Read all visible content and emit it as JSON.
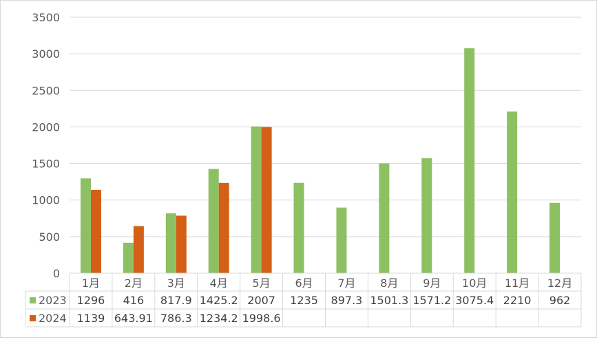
{
  "chart_data": {
    "type": "bar",
    "title": "",
    "xlabel": "",
    "ylabel": "",
    "ylim": [
      0,
      3500
    ],
    "yticks": [
      0,
      500,
      1000,
      1500,
      2000,
      2500,
      3000,
      3500
    ],
    "grid": true,
    "legend": "data-table-left",
    "categories": [
      "1月",
      "2月",
      "3月",
      "4月",
      "5月",
      "6月",
      "7月",
      "8月",
      "9月",
      "10月",
      "11月",
      "12月"
    ],
    "series": [
      {
        "name": "2023",
        "color": "#8dc063",
        "values": [
          1296,
          416,
          817.9,
          1425.2,
          2007,
          1235,
          897.3,
          1501.3,
          1571.2,
          3075.4,
          2210,
          962
        ],
        "labels": [
          "1296",
          "416",
          "817.9",
          "1425.2",
          "2007",
          "1235",
          "897.3",
          "1501.3",
          "1571.2",
          "3075.4",
          "2210",
          "962"
        ]
      },
      {
        "name": "2024",
        "color": "#d45f16",
        "values": [
          1139,
          643.91,
          786.3,
          1234.2,
          1998.6,
          null,
          null,
          null,
          null,
          null,
          null,
          null
        ],
        "labels": [
          "1139",
          "643.91",
          "786.3",
          "1234.2",
          "1998.6",
          "",
          "",
          "",
          "",
          "",
          "",
          ""
        ]
      }
    ]
  }
}
